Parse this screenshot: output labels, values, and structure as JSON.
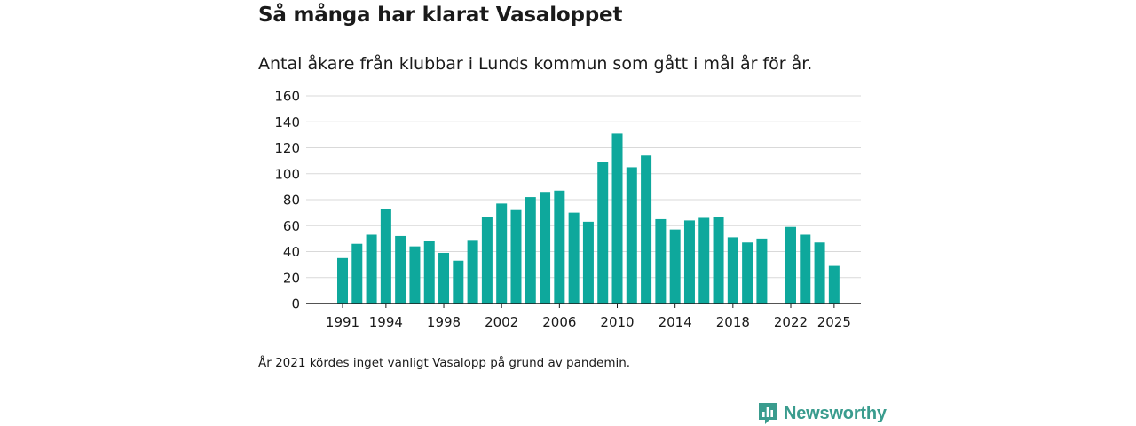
{
  "title": "Så många har klarat Vasaloppet",
  "subtitle": "Antal åkare från klubbar i Lunds kommun som gått i mål år för år.",
  "note": "År 2021 kördes inget vanligt Vasalopp på grund av pandemin.",
  "brand": {
    "name": "Newsworthy",
    "icon": "newsworthy-logo-icon",
    "color": "#3a9c8e"
  },
  "colors": {
    "bar": "#0ea89c",
    "grid": "#d9d9d9",
    "axis": "#1a1a1a"
  },
  "chart_data": {
    "type": "bar",
    "title": "Så många har klarat Vasaloppet",
    "xlabel": "",
    "ylabel": "",
    "ylim": [
      0,
      160
    ],
    "yticks": [
      0,
      20,
      40,
      60,
      80,
      100,
      120,
      140,
      160
    ],
    "xticks": [
      1991,
      1994,
      1998,
      2002,
      2006,
      2010,
      2014,
      2018,
      2022,
      2025
    ],
    "grid": true,
    "categories": [
      1991,
      1992,
      1993,
      1994,
      1995,
      1996,
      1997,
      1998,
      1999,
      2000,
      2001,
      2002,
      2003,
      2004,
      2005,
      2006,
      2007,
      2008,
      2009,
      2010,
      2011,
      2012,
      2013,
      2014,
      2015,
      2016,
      2017,
      2018,
      2019,
      2020,
      2021,
      2022,
      2023,
      2024,
      2025
    ],
    "values": [
      35,
      46,
      53,
      73,
      52,
      44,
      48,
      39,
      33,
      49,
      67,
      77,
      72,
      82,
      86,
      87,
      70,
      63,
      109,
      131,
      105,
      114,
      65,
      57,
      64,
      66,
      67,
      51,
      47,
      50,
      null,
      59,
      53,
      47,
      29
    ]
  }
}
